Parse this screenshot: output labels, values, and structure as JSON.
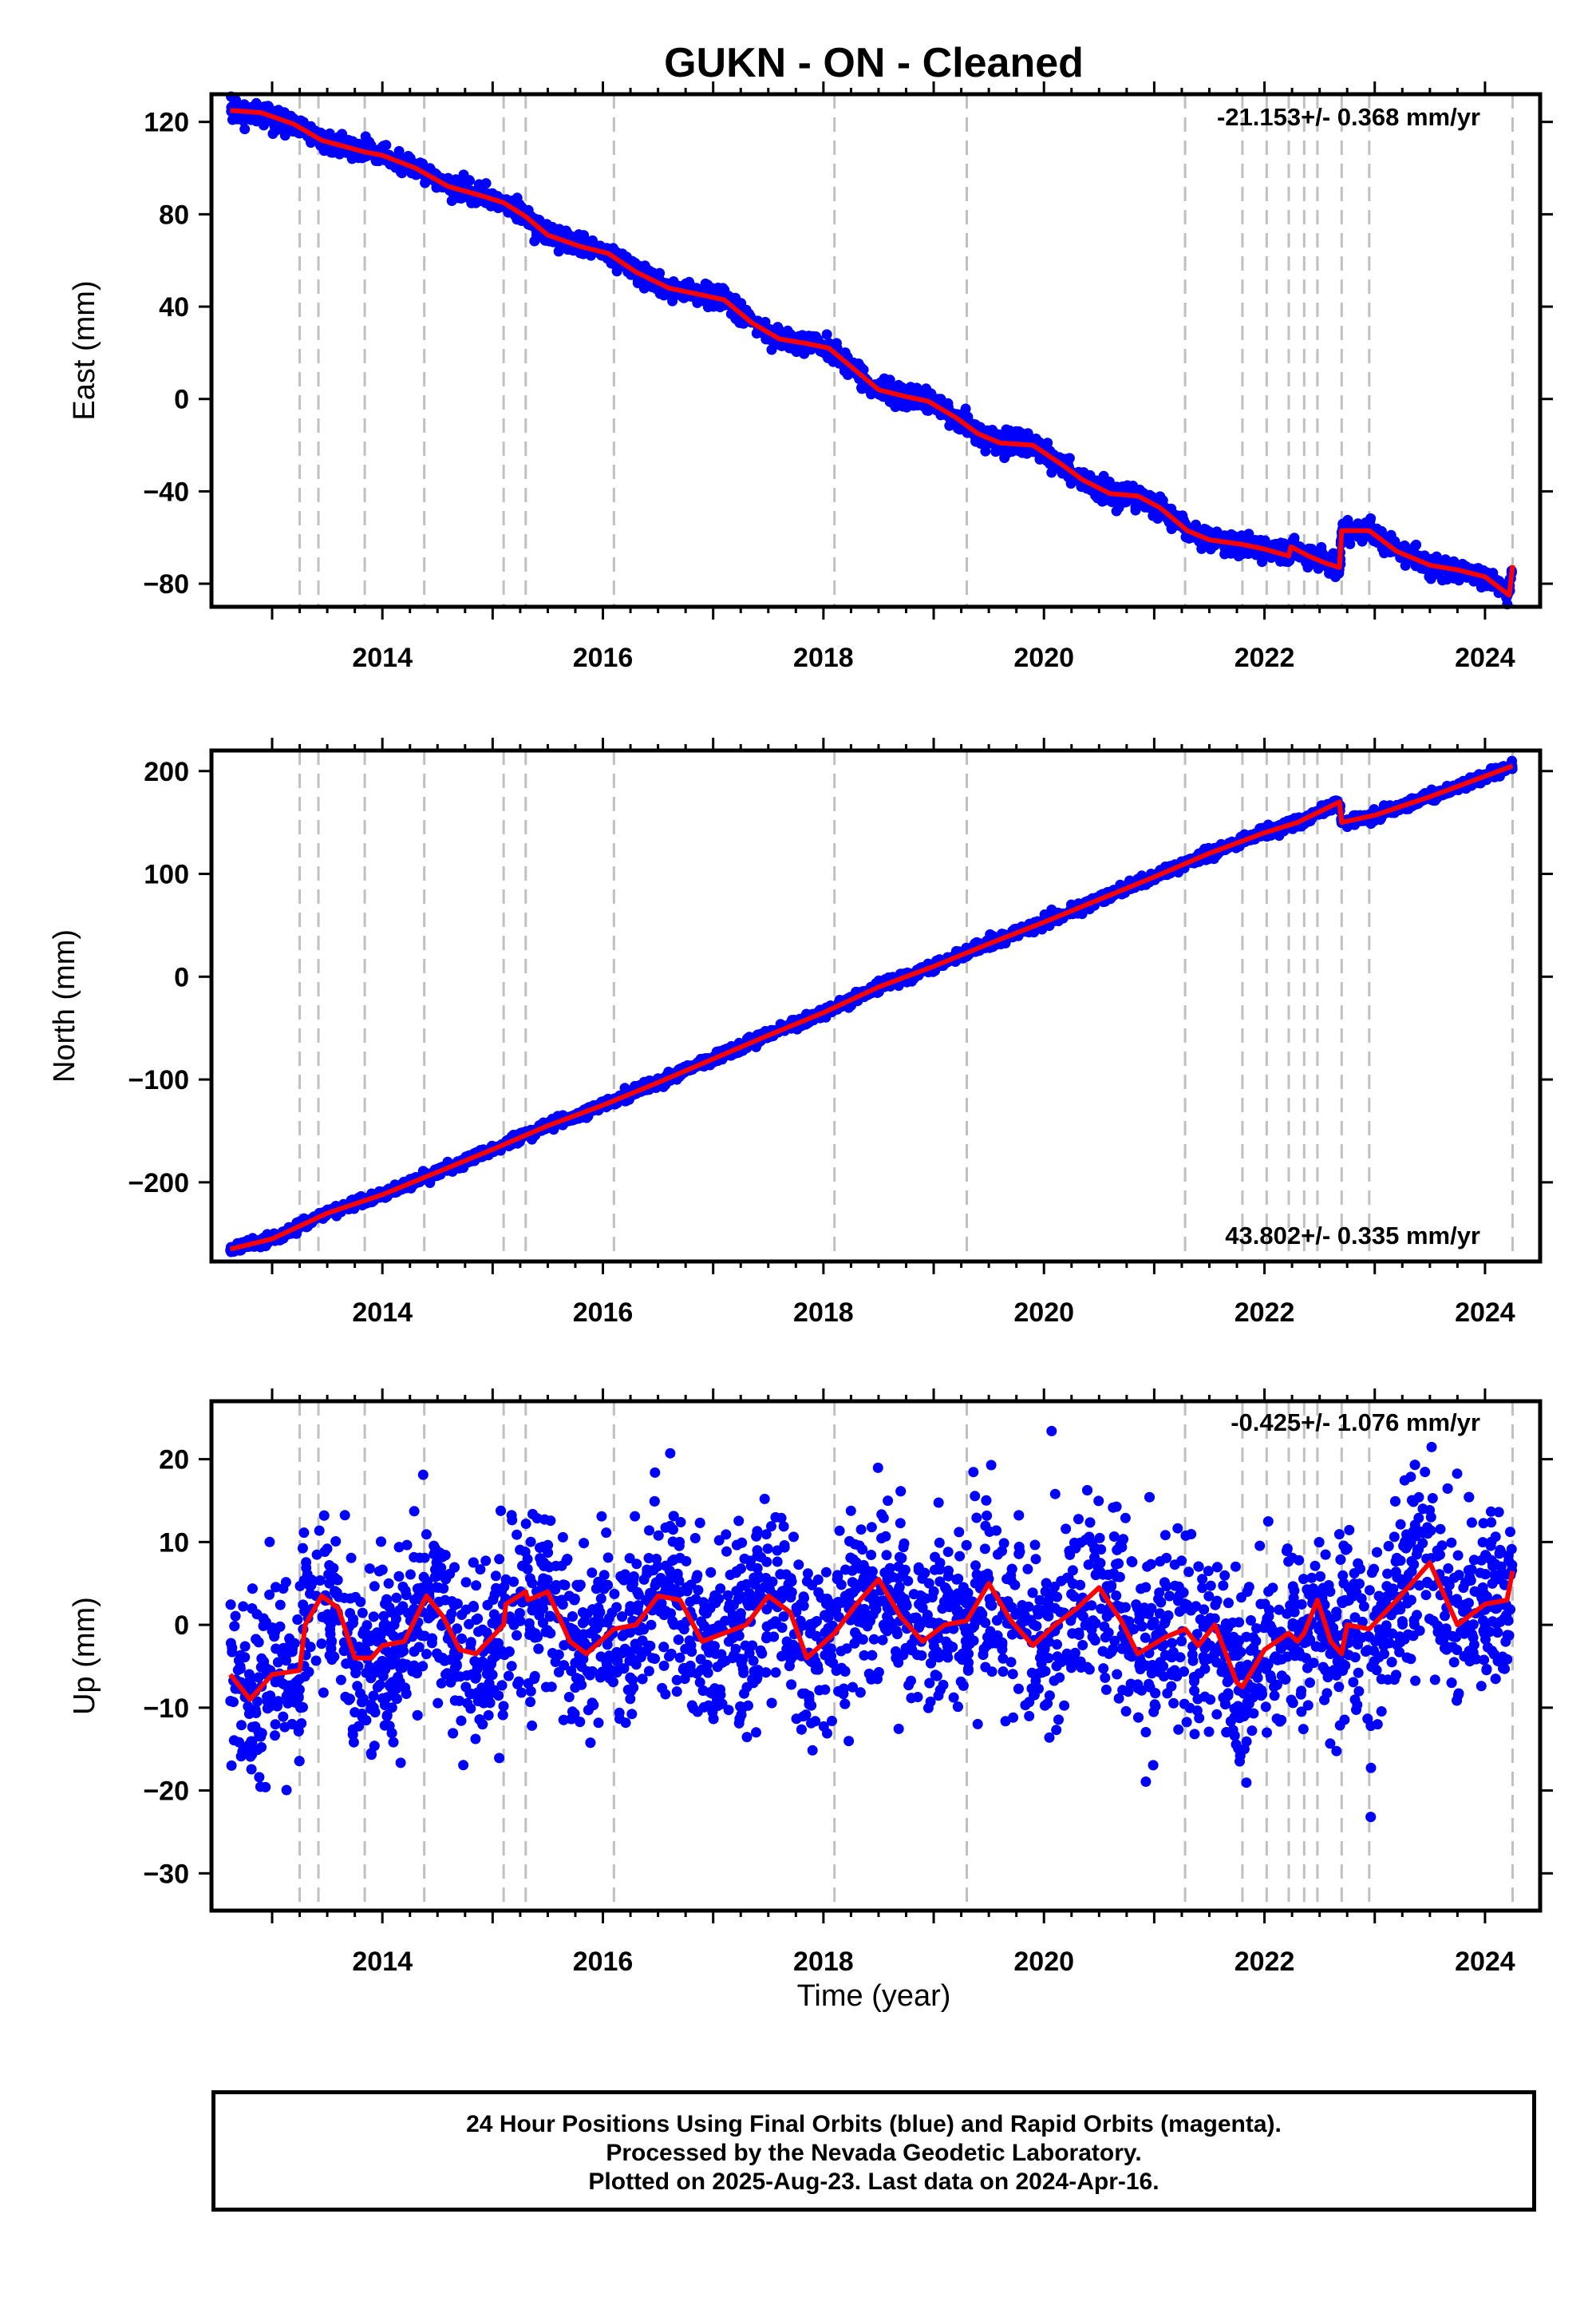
{
  "title": "GUKN  - ON - Cleaned",
  "xlabel": "Time (year)",
  "footer": {
    "line1": "24 Hour Positions Using Final Orbits (blue) and Rapid Orbits (magenta).",
    "line2": "Processed by the Nevada Geodetic Laboratory.",
    "line3": "Plotted on 2025-Aug-23. Last data on 2024-Apr-16."
  },
  "colors": {
    "data": "#0000ff",
    "model": "#ff0000",
    "event_line": "#c0c0c0",
    "frame": "#000000"
  },
  "chart_data": [
    {
      "type": "scatter",
      "ylabel": "East (mm)",
      "rate_text": "-21.153+/- 0.368 mm/yr",
      "xlim": [
        2012.45,
        2024.5
      ],
      "ylim": [
        -90,
        132
      ],
      "xticks": [
        "2014",
        "2016",
        "2018",
        "2020",
        "2022",
        "2024"
      ],
      "yticks": [
        -80,
        -40,
        0,
        40,
        80,
        120
      ],
      "event_lines_x": [
        2013.25,
        2013.42,
        2013.84,
        2014.38,
        2015.1,
        2015.3,
        2016.1,
        2018.1,
        2019.3,
        2021.28,
        2021.8,
        2022.02,
        2022.22,
        2022.36,
        2022.48,
        2022.7,
        2022.95,
        2024.25
      ],
      "model_series": [
        [
          2012.62,
          125
        ],
        [
          2012.9,
          124
        ],
        [
          2013.2,
          119
        ],
        [
          2013.45,
          112
        ],
        [
          2013.84,
          107
        ],
        [
          2014.0,
          105.5
        ],
        [
          2014.3,
          100
        ],
        [
          2014.6,
          92
        ],
        [
          2014.9,
          88
        ],
        [
          2015.1,
          85
        ],
        [
          2015.3,
          79
        ],
        [
          2015.5,
          71
        ],
        [
          2015.8,
          66
        ],
        [
          2016.05,
          63
        ],
        [
          2016.3,
          55
        ],
        [
          2016.6,
          48
        ],
        [
          2016.9,
          45
        ],
        [
          2017.1,
          43
        ],
        [
          2017.35,
          33
        ],
        [
          2017.6,
          26
        ],
        [
          2017.85,
          24
        ],
        [
          2018.05,
          22
        ],
        [
          2018.3,
          12
        ],
        [
          2018.5,
          4
        ],
        [
          2018.75,
          1
        ],
        [
          2018.95,
          -1
        ],
        [
          2019.2,
          -8
        ],
        [
          2019.4,
          -15
        ],
        [
          2019.6,
          -19
        ],
        [
          2019.9,
          -20
        ],
        [
          2020.15,
          -28
        ],
        [
          2020.35,
          -35
        ],
        [
          2020.6,
          -41
        ],
        [
          2020.85,
          -42
        ],
        [
          2021.05,
          -47
        ],
        [
          2021.3,
          -57
        ],
        [
          2021.5,
          -61
        ],
        [
          2021.8,
          -63
        ],
        [
          2022.0,
          -65
        ],
        [
          2022.22,
          -68
        ],
        [
          2022.24,
          -64
        ],
        [
          2022.4,
          -68
        ],
        [
          2022.55,
          -71
        ],
        [
          2022.68,
          -73
        ],
        [
          2022.7,
          -57
        ],
        [
          2022.95,
          -57
        ],
        [
          2023.2,
          -66
        ],
        [
          2023.5,
          -72
        ],
        [
          2023.75,
          -74
        ],
        [
          2024.0,
          -77
        ],
        [
          2024.22,
          -85
        ],
        [
          2024.25,
          -72
        ]
      ],
      "scatter_noise": 2.2
    },
    {
      "type": "scatter",
      "ylabel": "North (mm)",
      "rate_text": "43.802+/- 0.335 mm/yr",
      "xlim": [
        2012.45,
        2024.5
      ],
      "ylim": [
        -277,
        220
      ],
      "xticks": [
        "2014",
        "2016",
        "2018",
        "2020",
        "2022",
        "2024"
      ],
      "yticks": [
        -200,
        -100,
        0,
        100,
        200
      ],
      "event_lines_x": [
        2013.25,
        2013.42,
        2013.84,
        2014.38,
        2015.1,
        2015.3,
        2016.1,
        2018.1,
        2019.3,
        2021.28,
        2021.8,
        2022.02,
        2022.22,
        2022.36,
        2022.48,
        2022.7,
        2022.95,
        2024.25
      ],
      "model_series": [
        [
          2012.62,
          -265
        ],
        [
          2013.0,
          -255
        ],
        [
          2013.5,
          -230
        ],
        [
          2014.0,
          -212
        ],
        [
          2014.5,
          -190
        ],
        [
          2015.0,
          -168
        ],
        [
          2015.5,
          -145
        ],
        [
          2016.0,
          -125
        ],
        [
          2016.5,
          -103
        ],
        [
          2017.0,
          -80
        ],
        [
          2017.5,
          -57
        ],
        [
          2018.0,
          -35
        ],
        [
          2018.5,
          -10
        ],
        [
          2019.0,
          10
        ],
        [
          2019.5,
          32
        ],
        [
          2020.0,
          53
        ],
        [
          2020.5,
          75
        ],
        [
          2021.0,
          97
        ],
        [
          2021.5,
          120
        ],
        [
          2022.0,
          140
        ],
        [
          2022.3,
          150
        ],
        [
          2022.68,
          170
        ],
        [
          2022.7,
          150
        ],
        [
          2023.0,
          157
        ],
        [
          2023.5,
          175
        ],
        [
          2024.0,
          195
        ],
        [
          2024.25,
          205
        ]
      ],
      "scatter_noise": 2.4
    },
    {
      "type": "scatter",
      "ylabel": "Up (mm)",
      "rate_text": "-0.425+/- 1.076 mm/yr",
      "xlim": [
        2012.45,
        2024.5
      ],
      "ylim": [
        -34.5,
        27
      ],
      "xticks": [
        "2014",
        "2016",
        "2018",
        "2020",
        "2022",
        "2024"
      ],
      "yticks": [
        -30,
        -20,
        -10,
        0,
        10,
        20
      ],
      "event_lines_x": [
        2013.25,
        2013.42,
        2013.84,
        2014.38,
        2015.1,
        2015.3,
        2016.1,
        2018.1,
        2019.3,
        2021.28,
        2021.8,
        2022.02,
        2022.22,
        2022.36,
        2022.48,
        2022.7,
        2022.95,
        2024.25
      ],
      "model_series": [
        [
          2012.62,
          -6
        ],
        [
          2012.8,
          -9
        ],
        [
          2013.0,
          -6
        ],
        [
          2013.25,
          -5.5
        ],
        [
          2013.3,
          0
        ],
        [
          2013.45,
          3.5
        ],
        [
          2013.6,
          2
        ],
        [
          2013.75,
          -4
        ],
        [
          2013.9,
          -4
        ],
        [
          2014.0,
          -2.5
        ],
        [
          2014.2,
          -2
        ],
        [
          2014.4,
          3.5
        ],
        [
          2014.55,
          1
        ],
        [
          2014.7,
          -3
        ],
        [
          2014.85,
          -3.5
        ],
        [
          2015.1,
          0
        ],
        [
          2015.12,
          2.5
        ],
        [
          2015.3,
          4
        ],
        [
          2015.32,
          3
        ],
        [
          2015.5,
          4
        ],
        [
          2015.7,
          -2
        ],
        [
          2015.85,
          -3.5
        ],
        [
          2016.1,
          -0.5
        ],
        [
          2016.3,
          0
        ],
        [
          2016.5,
          3.5
        ],
        [
          2016.7,
          3
        ],
        [
          2016.9,
          -2
        ],
        [
          2017.1,
          -1
        ],
        [
          2017.3,
          0
        ],
        [
          2017.5,
          3.5
        ],
        [
          2017.7,
          1.5
        ],
        [
          2017.85,
          -4
        ],
        [
          2018.1,
          -1
        ],
        [
          2018.3,
          2.5
        ],
        [
          2018.5,
          5.5
        ],
        [
          2018.7,
          1
        ],
        [
          2018.9,
          -2
        ],
        [
          2019.1,
          0
        ],
        [
          2019.3,
          0.5
        ],
        [
          2019.5,
          5
        ],
        [
          2019.7,
          0.5
        ],
        [
          2019.9,
          -2.5
        ],
        [
          2020.1,
          0
        ],
        [
          2020.3,
          2
        ],
        [
          2020.5,
          4.5
        ],
        [
          2020.7,
          0.5
        ],
        [
          2020.85,
          -3.5
        ],
        [
          2021.1,
          -1.5
        ],
        [
          2021.28,
          -0.5
        ],
        [
          2021.4,
          -2.5
        ],
        [
          2021.55,
          0
        ],
        [
          2021.75,
          -7
        ],
        [
          2021.8,
          -7.5
        ],
        [
          2022.0,
          -3
        ],
        [
          2022.22,
          -1
        ],
        [
          2022.3,
          -2
        ],
        [
          2022.36,
          -1
        ],
        [
          2022.48,
          3
        ],
        [
          2022.6,
          -2
        ],
        [
          2022.7,
          -3.5
        ],
        [
          2022.75,
          0
        ],
        [
          2022.95,
          -0.5
        ],
        [
          2023.2,
          3
        ],
        [
          2023.5,
          7.5
        ],
        [
          2023.75,
          0
        ],
        [
          2024.0,
          2.5
        ],
        [
          2024.2,
          3
        ],
        [
          2024.25,
          6.5
        ]
      ],
      "scatter_noise": 5.5
    }
  ]
}
